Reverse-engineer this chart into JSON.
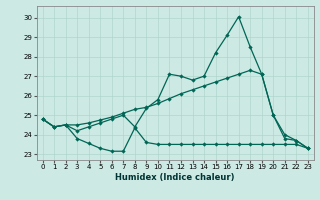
{
  "xlabel": "Humidex (Indice chaleur)",
  "background_color": "#cce9e4",
  "grid_color": "#b0d5cc",
  "line_color": "#006655",
  "xlim": [
    -0.5,
    23.5
  ],
  "ylim": [
    22.7,
    30.6
  ],
  "yticks": [
    23,
    24,
    25,
    26,
    27,
    28,
    29,
    30
  ],
  "xticks": [
    0,
    1,
    2,
    3,
    4,
    5,
    6,
    7,
    8,
    9,
    10,
    11,
    12,
    13,
    14,
    15,
    16,
    17,
    18,
    19,
    20,
    21,
    22,
    23
  ],
  "series1_x": [
    0,
    1,
    2,
    3,
    4,
    5,
    6,
    7,
    8,
    9,
    10,
    11,
    12,
    13,
    14,
    15,
    16,
    17,
    18,
    19,
    20,
    21,
    22,
    23
  ],
  "series1_y": [
    24.8,
    24.4,
    24.5,
    23.8,
    23.55,
    23.3,
    23.15,
    23.15,
    24.35,
    23.6,
    23.5,
    23.5,
    23.5,
    23.5,
    23.5,
    23.5,
    23.5,
    23.5,
    23.5,
    23.5,
    23.5,
    23.5,
    23.5,
    23.3
  ],
  "series2_x": [
    0,
    1,
    2,
    3,
    4,
    5,
    6,
    7,
    8,
    9,
    10,
    11,
    12,
    13,
    14,
    15,
    16,
    17,
    18,
    19,
    20,
    21,
    22,
    23
  ],
  "series2_y": [
    24.8,
    24.4,
    24.5,
    24.5,
    24.6,
    24.75,
    24.9,
    25.1,
    25.3,
    25.4,
    25.6,
    25.85,
    26.1,
    26.3,
    26.5,
    26.7,
    26.9,
    27.1,
    27.3,
    27.1,
    25.0,
    24.0,
    23.7,
    23.3
  ],
  "series3_x": [
    0,
    1,
    2,
    3,
    4,
    5,
    6,
    7,
    8,
    9,
    10,
    11,
    12,
    13,
    14,
    15,
    16,
    17,
    18,
    19,
    20,
    21,
    22,
    23
  ],
  "series3_y": [
    24.8,
    24.4,
    24.5,
    24.2,
    24.4,
    24.6,
    24.8,
    25.0,
    24.4,
    25.35,
    25.8,
    27.1,
    27.0,
    26.8,
    27.0,
    28.2,
    29.1,
    30.05,
    28.5,
    27.1,
    25.0,
    23.8,
    23.7,
    23.3
  ]
}
